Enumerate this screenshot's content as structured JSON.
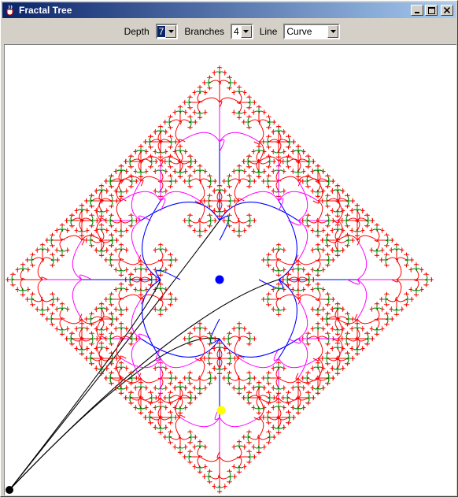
{
  "window": {
    "title": "Fractal Tree"
  },
  "toolbar": {
    "depth_label": "Depth",
    "depth_value": "7",
    "branches_label": "Branches",
    "branches_value": "4",
    "line_label": "Line",
    "line_value": "Curve"
  },
  "tree": {
    "depth": 7,
    "branches": 4,
    "line_style": "curve",
    "colors": {
      "trunk": "#000000",
      "level_1": "#0000ff",
      "level_2": "#ff00ff",
      "level_3": "#ff0000",
      "level_4": "#ff0000",
      "level_5": "#008000",
      "level_6": "#ff0000",
      "root_handle": "#000000",
      "center_handle": "#0000ff",
      "angle_handle": "#ffff00"
    }
  },
  "icons": {
    "app": "java-cup-icon",
    "minimize": "minimize-icon",
    "maximize": "maximize-icon",
    "close": "close-icon",
    "dropdown": "chevron-down-icon"
  }
}
